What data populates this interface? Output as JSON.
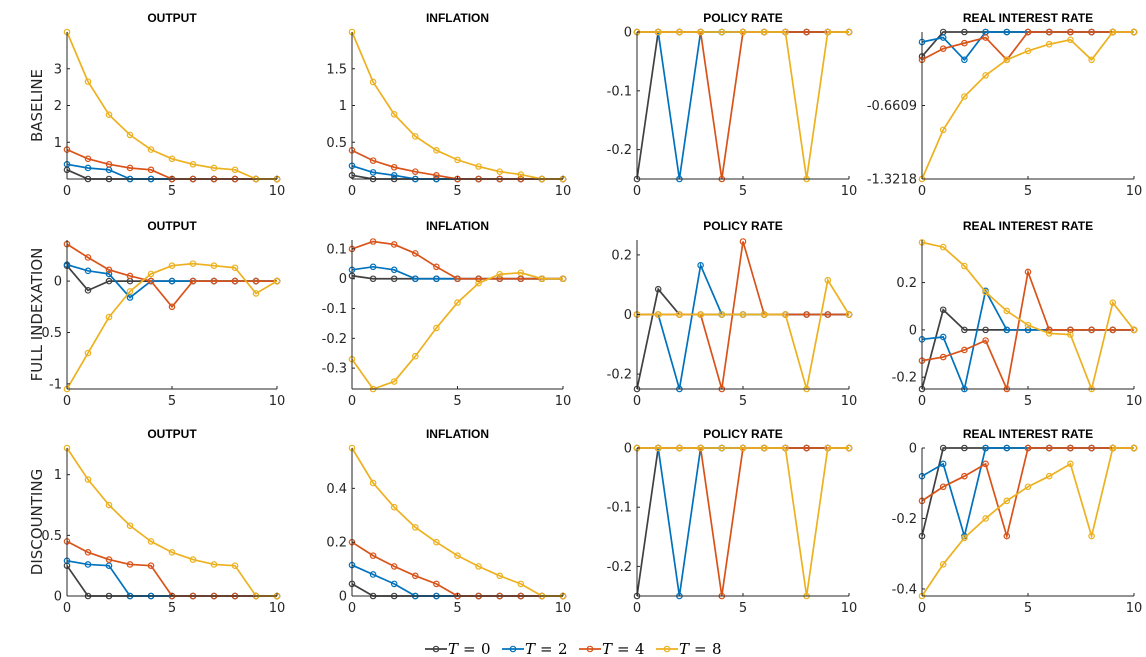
{
  "rows": [
    "BASELINE",
    "FULL INDEXATION",
    "DISCOUNTING"
  ],
  "colors": {
    "T0": "#404040",
    "T2": "#0072BD",
    "T4": "#D95319",
    "T8": "#EDB120"
  },
  "legend": [
    {
      "key": "T0",
      "var": "T",
      "eq": "=",
      "num": "0"
    },
    {
      "key": "T2",
      "var": "T",
      "eq": "=",
      "num": "2"
    },
    {
      "key": "T4",
      "var": "T",
      "eq": "=",
      "num": "4"
    },
    {
      "key": "T8",
      "var": "T",
      "eq": "=",
      "num": "8"
    }
  ],
  "chart_data": [
    {
      "row": "BASELINE",
      "title": "OUTPUT",
      "type": "line",
      "x": [
        0,
        1,
        2,
        3,
        4,
        5,
        6,
        7,
        8,
        9,
        10
      ],
      "xlim": [
        0,
        10
      ],
      "xticks": [
        0,
        5,
        10
      ],
      "ylim": [
        0,
        4
      ],
      "yticks": [
        1,
        2,
        3
      ],
      "yticklabels": [
        "1",
        "2",
        "3"
      ],
      "series": [
        {
          "key": "T0",
          "values": [
            0.25,
            0,
            0,
            0,
            0,
            0,
            0,
            0,
            0,
            0,
            0
          ]
        },
        {
          "key": "T2",
          "values": [
            0.4,
            0.3,
            0.25,
            0,
            0,
            0,
            0,
            0,
            0,
            0,
            0
          ]
        },
        {
          "key": "T4",
          "values": [
            0.8,
            0.55,
            0.4,
            0.3,
            0.25,
            0,
            0,
            0,
            0,
            0,
            0
          ]
        },
        {
          "key": "T8",
          "values": [
            4.0,
            2.65,
            1.75,
            1.2,
            0.8,
            0.55,
            0.4,
            0.3,
            0.25,
            0,
            0
          ]
        }
      ]
    },
    {
      "row": "BASELINE",
      "title": "INFLATION",
      "type": "line",
      "x": [
        0,
        1,
        2,
        3,
        4,
        5,
        6,
        7,
        8,
        9,
        10
      ],
      "xlim": [
        0,
        10
      ],
      "xticks": [
        0,
        5,
        10
      ],
      "ylim": [
        0,
        2
      ],
      "yticks": [
        0.5,
        1,
        1.5
      ],
      "yticklabels": [
        "0.5",
        "1",
        "1.5"
      ],
      "series": [
        {
          "key": "T0",
          "values": [
            0.05,
            0,
            0,
            0,
            0,
            0,
            0,
            0,
            0,
            0,
            0
          ]
        },
        {
          "key": "T2",
          "values": [
            0.18,
            0.09,
            0.05,
            0,
            0,
            0,
            0,
            0,
            0,
            0,
            0
          ]
        },
        {
          "key": "T4",
          "values": [
            0.39,
            0.25,
            0.16,
            0.1,
            0.05,
            0,
            0,
            0,
            0,
            0,
            0
          ]
        },
        {
          "key": "T8",
          "values": [
            2.0,
            1.32,
            0.88,
            0.58,
            0.39,
            0.26,
            0.17,
            0.1,
            0.06,
            0,
            0
          ]
        }
      ]
    },
    {
      "row": "BASELINE",
      "title": "POLICY RATE",
      "type": "line",
      "x": [
        0,
        1,
        2,
        3,
        4,
        5,
        6,
        7,
        8,
        9,
        10
      ],
      "xlim": [
        0,
        10
      ],
      "xticks": [
        0,
        5,
        10
      ],
      "ylim": [
        -0.25,
        0
      ],
      "yticks": [
        -0.2,
        -0.1,
        0
      ],
      "yticklabels": [
        "-0.2",
        "-0.1",
        "0"
      ],
      "series": [
        {
          "key": "T0",
          "values": [
            -0.25,
            0,
            0,
            0,
            0,
            0,
            0,
            0,
            0,
            0,
            0
          ]
        },
        {
          "key": "T2",
          "values": [
            0,
            0,
            -0.25,
            0,
            0,
            0,
            0,
            0,
            0,
            0,
            0
          ]
        },
        {
          "key": "T4",
          "values": [
            0,
            0,
            0,
            0,
            -0.25,
            0,
            0,
            0,
            0,
            0,
            0
          ]
        },
        {
          "key": "T8",
          "values": [
            0,
            0,
            0,
            0,
            0,
            0,
            0,
            0,
            -0.25,
            0,
            0
          ]
        }
      ]
    },
    {
      "row": "BASELINE",
      "title": "REAL INTEREST RATE",
      "type": "line",
      "x": [
        0,
        1,
        2,
        3,
        4,
        5,
        6,
        7,
        8,
        9,
        10
      ],
      "xlim": [
        0,
        10
      ],
      "xticks": [
        0,
        5,
        10
      ],
      "ylim": [
        -1.3218,
        0
      ],
      "yticks": [
        -1.3218,
        -0.6609
      ],
      "yticklabels": [
        "-1.3218",
        "-0.6609"
      ],
      "series": [
        {
          "key": "T0",
          "values": [
            -0.22,
            0,
            0,
            0,
            0,
            0,
            0,
            0,
            0,
            0,
            0
          ]
        },
        {
          "key": "T2",
          "values": [
            -0.09,
            -0.05,
            -0.25,
            0,
            0,
            0,
            0,
            0,
            0,
            0,
            0
          ]
        },
        {
          "key": "T4",
          "values": [
            -0.25,
            -0.15,
            -0.1,
            -0.05,
            -0.25,
            0,
            0,
            0,
            0,
            0,
            0
          ]
        },
        {
          "key": "T8",
          "values": [
            -1.3218,
            -0.88,
            -0.58,
            -0.39,
            -0.25,
            -0.17,
            -0.11,
            -0.07,
            -0.25,
            0,
            0
          ]
        }
      ]
    },
    {
      "row": "FULL INDEXATION",
      "title": "OUTPUT",
      "type": "line",
      "x": [
        0,
        1,
        2,
        3,
        4,
        5,
        6,
        7,
        8,
        9,
        10
      ],
      "xlim": [
        0,
        10
      ],
      "xticks": [
        0,
        5,
        10
      ],
      "ylim": [
        -1.05,
        0.4
      ],
      "yticks": [
        -1,
        -0.5,
        0
      ],
      "yticklabels": [
        "-1",
        "-0.5",
        "0"
      ],
      "series": [
        {
          "key": "T0",
          "values": [
            0.15,
            -0.09,
            0,
            0,
            0,
            0,
            0,
            0,
            0,
            0,
            0
          ]
        },
        {
          "key": "T2",
          "values": [
            0.16,
            0.1,
            0.07,
            -0.16,
            0,
            0,
            0,
            0,
            0,
            0,
            0
          ]
        },
        {
          "key": "T4",
          "values": [
            0.36,
            0.23,
            0.11,
            0.05,
            0,
            -0.25,
            0,
            0,
            0,
            0,
            0
          ]
        },
        {
          "key": "T8",
          "values": [
            -1.05,
            -0.7,
            -0.35,
            -0.1,
            0.07,
            0.15,
            0.17,
            0.15,
            0.13,
            -0.12,
            0
          ]
        }
      ]
    },
    {
      "row": "FULL INDEXATION",
      "title": "INFLATION",
      "type": "line",
      "x": [
        0,
        1,
        2,
        3,
        4,
        5,
        6,
        7,
        8,
        9,
        10
      ],
      "xlim": [
        0,
        10
      ],
      "xticks": [
        0,
        5,
        10
      ],
      "ylim": [
        -0.37,
        0.13
      ],
      "yticks": [
        -0.3,
        -0.2,
        -0.1,
        0,
        0.1
      ],
      "yticklabels": [
        "-0.3",
        "-0.2",
        "-0.1",
        "0",
        "0.1"
      ],
      "series": [
        {
          "key": "T0",
          "values": [
            0.01,
            0,
            0,
            0,
            0,
            0,
            0,
            0,
            0,
            0,
            0
          ]
        },
        {
          "key": "T2",
          "values": [
            0.03,
            0.04,
            0.03,
            0,
            0,
            0,
            0,
            0,
            0,
            0,
            0
          ]
        },
        {
          "key": "T4",
          "values": [
            0.1,
            0.125,
            0.115,
            0.085,
            0.04,
            0,
            0,
            0,
            0,
            0,
            0
          ]
        },
        {
          "key": "T8",
          "values": [
            -0.27,
            -0.37,
            -0.345,
            -0.26,
            -0.165,
            -0.08,
            -0.015,
            0.015,
            0.02,
            0,
            0
          ]
        }
      ]
    },
    {
      "row": "FULL INDEXATION",
      "title": "POLICY RATE",
      "type": "line",
      "x": [
        0,
        1,
        2,
        3,
        4,
        5,
        6,
        7,
        8,
        9,
        10
      ],
      "xlim": [
        0,
        10
      ],
      "xticks": [
        0,
        5,
        10
      ],
      "ylim": [
        -0.25,
        0.25
      ],
      "yticks": [
        -0.2,
        0,
        0.2
      ],
      "yticklabels": [
        "-0.2",
        "0",
        "0.2"
      ],
      "series": [
        {
          "key": "T0",
          "values": [
            -0.25,
            0.085,
            0,
            0,
            0,
            0,
            0,
            0,
            0,
            0,
            0
          ]
        },
        {
          "key": "T2",
          "values": [
            0,
            0,
            -0.25,
            0.165,
            0,
            0,
            0,
            0,
            0,
            0,
            0
          ]
        },
        {
          "key": "T4",
          "values": [
            0,
            0,
            0,
            0,
            -0.25,
            0.245,
            0,
            0,
            0,
            0,
            0
          ]
        },
        {
          "key": "T8",
          "values": [
            0,
            0,
            0,
            0,
            0,
            0,
            0,
            0,
            -0.25,
            0.115,
            0
          ]
        }
      ]
    },
    {
      "row": "FULL INDEXATION",
      "title": "REAL INTEREST RATE",
      "type": "line",
      "x": [
        0,
        1,
        2,
        3,
        4,
        5,
        6,
        7,
        8,
        9,
        10
      ],
      "xlim": [
        0,
        10
      ],
      "xticks": [
        0,
        5,
        10
      ],
      "ylim": [
        -0.25,
        0.38
      ],
      "yticks": [
        -0.2,
        0,
        0.2
      ],
      "yticklabels": [
        "-0.2",
        "0",
        "0.2"
      ],
      "series": [
        {
          "key": "T0",
          "values": [
            -0.25,
            0.085,
            0,
            0,
            0,
            0,
            0,
            0,
            0,
            0,
            0
          ]
        },
        {
          "key": "T2",
          "values": [
            -0.04,
            -0.03,
            -0.25,
            0.165,
            0,
            0,
            0,
            0,
            0,
            0,
            0
          ]
        },
        {
          "key": "T4",
          "values": [
            -0.13,
            -0.115,
            -0.085,
            -0.045,
            -0.25,
            0.245,
            0,
            0,
            0,
            0,
            0
          ]
        },
        {
          "key": "T8",
          "values": [
            0.37,
            0.35,
            0.27,
            0.16,
            0.08,
            0.02,
            -0.015,
            -0.02,
            -0.25,
            0.115,
            0
          ]
        }
      ]
    },
    {
      "row": "DISCOUNTING",
      "title": "OUTPUT",
      "type": "line",
      "x": [
        0,
        1,
        2,
        3,
        4,
        5,
        6,
        7,
        8,
        9,
        10
      ],
      "xlim": [
        0,
        10
      ],
      "xticks": [
        0,
        5,
        10
      ],
      "ylim": [
        0,
        1.22
      ],
      "yticks": [
        0,
        0.5,
        1
      ],
      "yticklabels": [
        "0",
        "0.5",
        "1"
      ],
      "series": [
        {
          "key": "T0",
          "values": [
            0.25,
            0,
            0,
            0,
            0,
            0,
            0,
            0,
            0,
            0,
            0
          ]
        },
        {
          "key": "T2",
          "values": [
            0.29,
            0.26,
            0.25,
            0,
            0,
            0,
            0,
            0,
            0,
            0,
            0
          ]
        },
        {
          "key": "T4",
          "values": [
            0.45,
            0.36,
            0.3,
            0.26,
            0.25,
            0,
            0,
            0,
            0,
            0,
            0
          ]
        },
        {
          "key": "T8",
          "values": [
            1.22,
            0.96,
            0.75,
            0.58,
            0.45,
            0.36,
            0.3,
            0.26,
            0.25,
            0,
            0
          ]
        }
      ]
    },
    {
      "row": "DISCOUNTING",
      "title": "INFLATION",
      "type": "line",
      "x": [
        0,
        1,
        2,
        3,
        4,
        5,
        6,
        7,
        8,
        9,
        10
      ],
      "xlim": [
        0,
        10
      ],
      "xticks": [
        0,
        5,
        10
      ],
      "ylim": [
        0,
        0.55
      ],
      "yticks": [
        0,
        0.2,
        0.4
      ],
      "yticklabels": [
        "0",
        "0.2",
        "0.4"
      ],
      "series": [
        {
          "key": "T0",
          "values": [
            0.045,
            0,
            0,
            0,
            0,
            0,
            0,
            0,
            0,
            0,
            0
          ]
        },
        {
          "key": "T2",
          "values": [
            0.115,
            0.08,
            0.045,
            0,
            0,
            0,
            0,
            0,
            0,
            0,
            0
          ]
        },
        {
          "key": "T4",
          "values": [
            0.2,
            0.15,
            0.11,
            0.075,
            0.045,
            0,
            0,
            0,
            0,
            0,
            0
          ]
        },
        {
          "key": "T8",
          "values": [
            0.55,
            0.42,
            0.33,
            0.255,
            0.2,
            0.15,
            0.11,
            0.075,
            0.045,
            0,
            0
          ]
        }
      ]
    },
    {
      "row": "DISCOUNTING",
      "title": "POLICY RATE",
      "type": "line",
      "x": [
        0,
        1,
        2,
        3,
        4,
        5,
        6,
        7,
        8,
        9,
        10
      ],
      "xlim": [
        0,
        10
      ],
      "xticks": [
        0,
        5,
        10
      ],
      "ylim": [
        -0.25,
        0
      ],
      "yticks": [
        -0.2,
        -0.1,
        0
      ],
      "yticklabels": [
        "-0.2",
        "-0.1",
        "0"
      ],
      "series": [
        {
          "key": "T0",
          "values": [
            -0.25,
            0,
            0,
            0,
            0,
            0,
            0,
            0,
            0,
            0,
            0
          ]
        },
        {
          "key": "T2",
          "values": [
            0,
            0,
            -0.25,
            0,
            0,
            0,
            0,
            0,
            0,
            0,
            0
          ]
        },
        {
          "key": "T4",
          "values": [
            0,
            0,
            0,
            0,
            -0.25,
            0,
            0,
            0,
            0,
            0,
            0
          ]
        },
        {
          "key": "T8",
          "values": [
            0,
            0,
            0,
            0,
            0,
            0,
            0,
            0,
            -0.25,
            0,
            0
          ]
        }
      ]
    },
    {
      "row": "DISCOUNTING",
      "title": "REAL INTEREST RATE",
      "type": "line",
      "x": [
        0,
        1,
        2,
        3,
        4,
        5,
        6,
        7,
        8,
        9,
        10
      ],
      "xlim": [
        0,
        10
      ],
      "xticks": [
        0,
        5,
        10
      ],
      "ylim": [
        -0.42,
        0
      ],
      "yticks": [
        -0.4,
        -0.2,
        0
      ],
      "yticklabels": [
        "-0.4",
        "-0.2",
        "0"
      ],
      "series": [
        {
          "key": "T0",
          "values": [
            -0.25,
            0,
            0,
            0,
            0,
            0,
            0,
            0,
            0,
            0,
            0
          ]
        },
        {
          "key": "T2",
          "values": [
            -0.08,
            -0.045,
            -0.25,
            0,
            0,
            0,
            0,
            0,
            0,
            0,
            0
          ]
        },
        {
          "key": "T4",
          "values": [
            -0.15,
            -0.11,
            -0.08,
            -0.045,
            -0.25,
            0,
            0,
            0,
            0,
            0,
            0
          ]
        },
        {
          "key": "T8",
          "values": [
            -0.42,
            -0.33,
            -0.255,
            -0.2,
            -0.15,
            -0.11,
            -0.08,
            -0.045,
            -0.25,
            0,
            0
          ]
        }
      ]
    }
  ]
}
